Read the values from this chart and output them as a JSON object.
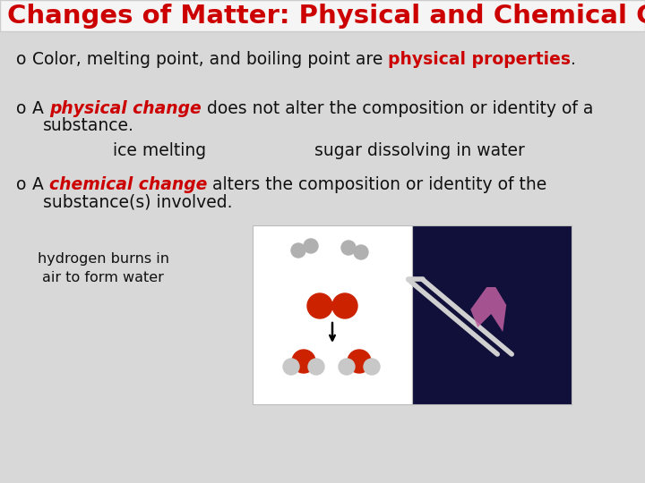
{
  "title": "Changes of Matter: Physical and Chemical Ch",
  "title_color": "#CC0000",
  "bg_color": "#d8d8d8",
  "title_bg": "#f5f5f5",
  "text_color": "#111111",
  "red_color": "#CC0000",
  "body_fontsize": 13.5,
  "small_fontsize": 11.5,
  "title_fontsize": 21,
  "bullet1_pre": "Color, melting point, and boiling point are ",
  "bullet1_bold": "physical properties",
  "bullet1_post": ".",
  "bullet2_pre": "A ",
  "bullet2_bold": "physical change",
  "bullet2_post": " does not alter the composition or identity of a",
  "bullet2_line2": "substance.",
  "ice_melting": "ice melting",
  "sugar_dissolving": "sugar dissolving in water",
  "bullet3_pre": "A ",
  "bullet3_bold": "chemical change",
  "bullet3_post": " alters the composition or identity of the",
  "bullet3_line2": "substance(s) involved.",
  "hydrogen_label": "hydrogen burns in\nair to form water"
}
